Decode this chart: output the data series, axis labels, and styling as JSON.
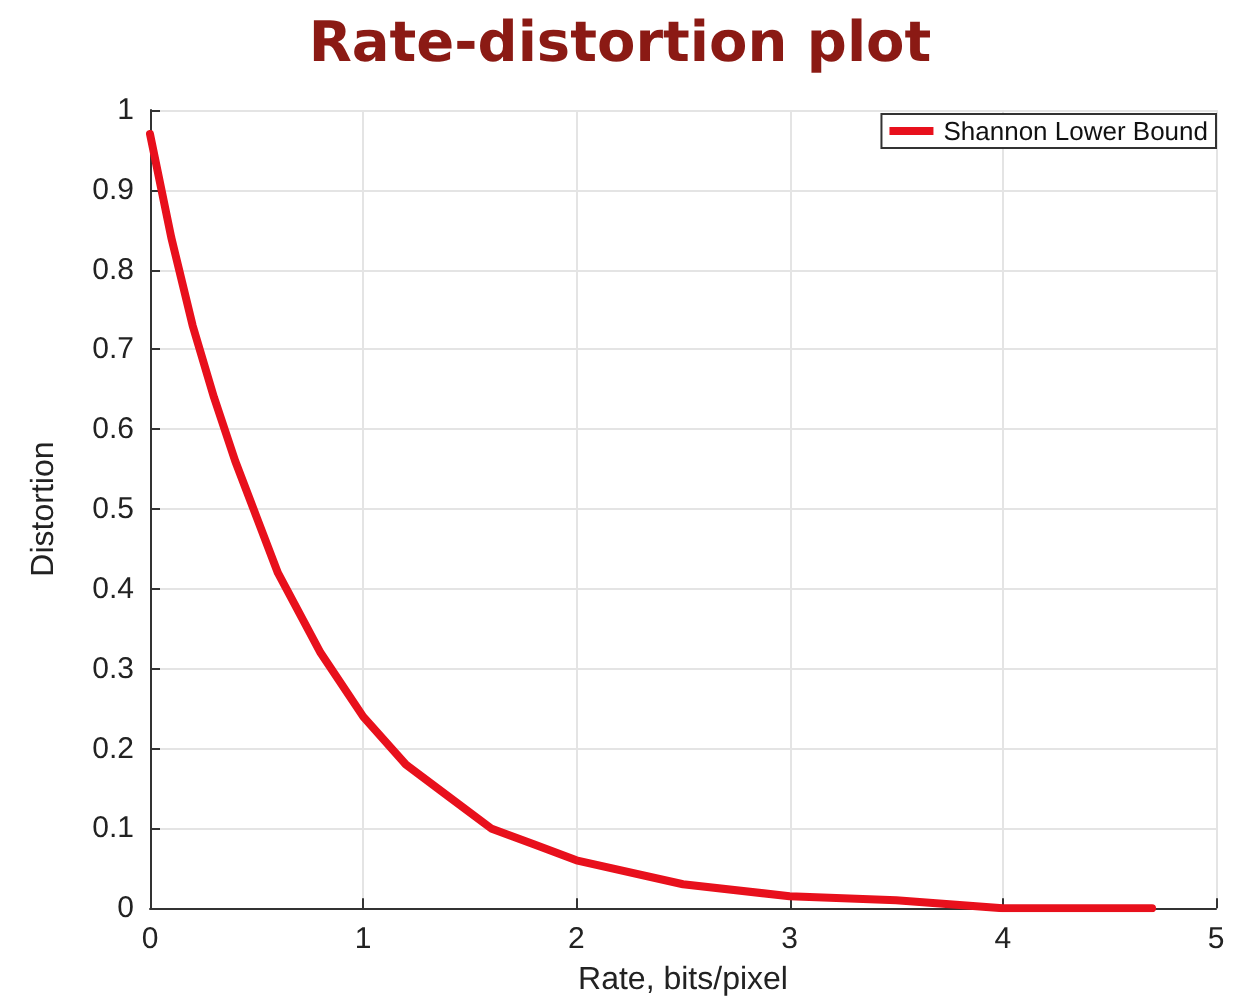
{
  "chart_data": {
    "type": "line",
    "title": "Rate-distortion plot",
    "xlabel": "Rate, bits/pixel",
    "ylabel": "Distortion",
    "x": [
      0,
      0.1,
      0.2,
      0.3,
      0.4,
      0.5,
      0.6,
      0.8,
      1,
      1.2,
      1.4,
      1.6,
      1.8,
      2,
      2.5,
      3,
      3.5,
      4,
      4.5,
      4.7
    ],
    "series": [
      {
        "name": "Shannon Lower Bound",
        "color": "#e8101c",
        "values": [
          0.97,
          0.84,
          0.73,
          0.64,
          0.56,
          0.49,
          0.42,
          0.32,
          0.24,
          0.18,
          0.14,
          0.1,
          0.08,
          0.06,
          0.03,
          0.015,
          0.01,
          0,
          0,
          0
        ]
      }
    ],
    "xlim": [
      0,
      5
    ],
    "xticks": [
      0,
      1,
      2,
      3,
      4,
      5
    ],
    "ylim": [
      0,
      1
    ],
    "yticks": [
      0,
      0.1,
      0.2,
      0.3,
      0.4,
      0.5,
      0.6,
      0.7,
      0.8,
      0.9,
      1
    ],
    "grid": true,
    "legend": "top right",
    "marker": "none",
    "line_style": "solid"
  }
}
